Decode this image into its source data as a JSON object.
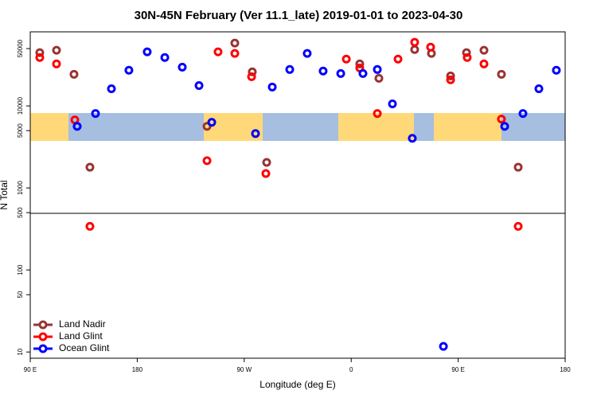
{
  "chart_data": {
    "type": "scatter",
    "title": "30N-45N February (Ver 11.1_late)   2019-01-01 to 2023-04-30",
    "x_label": "Longitude (deg E)",
    "y_label": "N Total",
    "xlim": [
      90,
      540
    ],
    "xticks": [
      {
        "value": 90,
        "label": "90 E"
      },
      180,
      {
        "value": 270,
        "label": "90 W"
      },
      {
        "value": 360,
        "label": "0"
      },
      {
        "value": 450,
        "label": "90 E"
      },
      {
        "value": 540,
        "label": "180"
      }
    ],
    "ylim": [
      8.4,
      80000
    ],
    "log_y": true,
    "yticks": [
      10,
      50,
      100,
      500,
      1000,
      5000,
      10000,
      50000
    ],
    "legend": "lower left",
    "series": [
      {
        "name": "Land Nadir",
        "color": "#993333",
        "x": [
          98.0,
          112.1,
          126.8,
          140.2,
          238.7,
          262.1,
          276.8,
          288.9,
          367.2,
          383.3,
          413.4,
          427.5,
          443.6,
          457.0,
          471.7,
          486.4,
          500.5
        ],
        "values": [
          44600,
          47700,
          24300,
          1790,
          5640,
          58300,
          26000,
          2050,
          32500,
          21700,
          48700,
          43600,
          23200,
          44600,
          47700,
          24300,
          1790
        ]
      },
      {
        "name": "Land Glint",
        "color": "#ff0000",
        "x": [
          98.0,
          112.1,
          127.5,
          140.2,
          238.7,
          248.0,
          262.1,
          276.2,
          288.2,
          355.9,
          367.2,
          382.0,
          399.4,
          413.4,
          426.8,
          443.6,
          457.6,
          471.7,
          486.4,
          500.5
        ],
        "values": [
          38900,
          32500,
          6750,
          340,
          2150,
          45600,
          43600,
          22700,
          1500,
          37200,
          29000,
          8080,
          37200,
          59700,
          52100,
          20800,
          38900,
          32500,
          6900,
          340
        ]
      },
      {
        "name": "Ocean Glint",
        "color": "#0000ff",
        "x": [
          129.5,
          144.9,
          158.3,
          173.0,
          188.4,
          203.2,
          217.9,
          232.0,
          242.7,
          279.5,
          293.6,
          308.3,
          323.0,
          336.4,
          351.2,
          369.9,
          382.0,
          394.7,
          411.4,
          437.6,
          489.1,
          504.5,
          517.9,
          532.6
        ],
        "values": [
          5640,
          8080,
          16200,
          27200,
          45600,
          38900,
          29700,
          17700,
          6310,
          4600,
          17000,
          27800,
          43600,
          26600,
          24800,
          24800,
          27800,
          10600,
          4030,
          11.7,
          5640,
          8080,
          16200,
          27200
        ]
      }
    ]
  }
}
